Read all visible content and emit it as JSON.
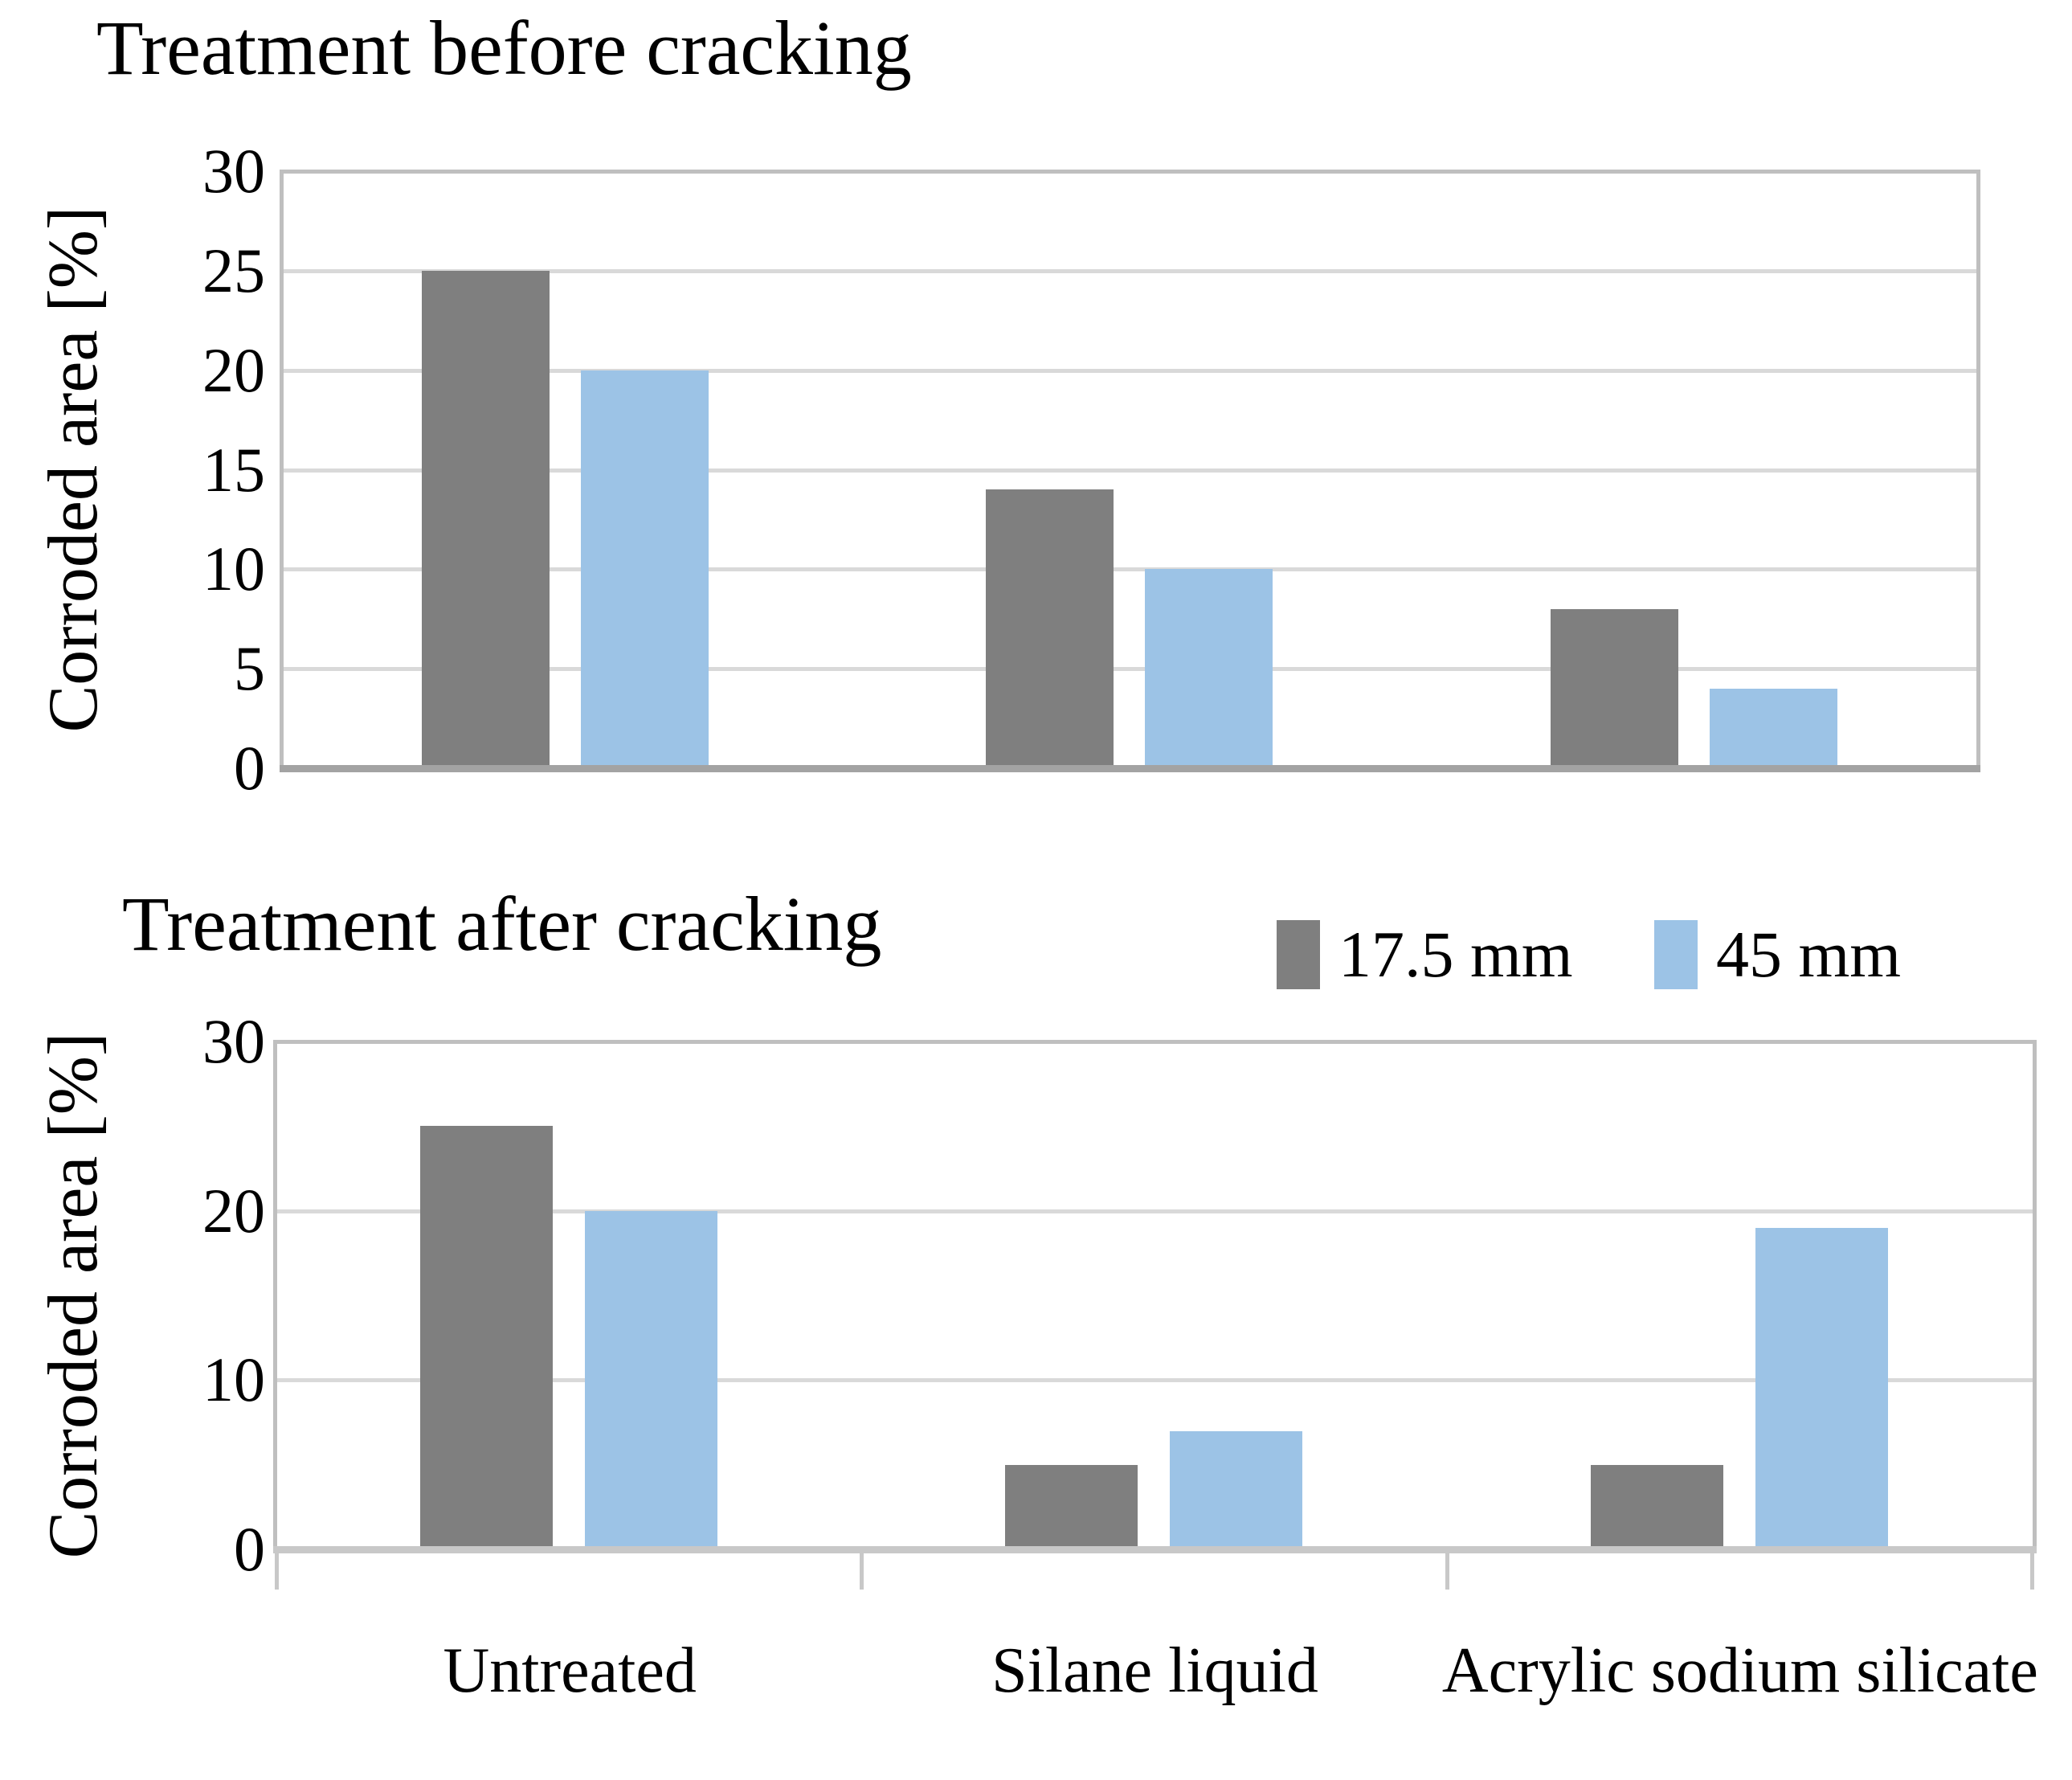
{
  "colors": {
    "background": "#FFFFFF",
    "text": "#000000",
    "bar_gray": "#7F7F7F",
    "bar_blue": "#9CC3E6",
    "gridline": "#D9D9D9",
    "plot_border": "#BFBFBF",
    "axis_top_chart": "#A3A3A3",
    "axis_bottom_chart": "#C8C8C8"
  },
  "legend": {
    "items": [
      {
        "label": "17.5 mm",
        "color": "#7F7F7F",
        "marker": "gray-rect-swatch"
      },
      {
        "label": "45 mm",
        "color": "#9CC3E6",
        "marker": "blue-rect-swatch"
      }
    ],
    "position": "right-of-second-title"
  },
  "chart_data": [
    {
      "type": "bar",
      "title": "Treatment before cracking",
      "xlabel": "",
      "ylabel": "Corroded area [%]",
      "categories": [
        "Untreated",
        "Silane liquid",
        "Acrylic sodium silicate"
      ],
      "category_labels_shown": false,
      "series": [
        {
          "name": "17.5 mm",
          "color": "#7F7F7F",
          "values": [
            25,
            14,
            8
          ]
        },
        {
          "name": "45 mm",
          "color": "#9CC3E6",
          "values": [
            20,
            10,
            4
          ]
        }
      ],
      "ylim": [
        0,
        30
      ],
      "yticks": [
        0,
        5,
        10,
        15,
        20,
        25,
        30
      ],
      "grid": true,
      "legend_position": "none"
    },
    {
      "type": "bar",
      "title": "Treatment after cracking",
      "xlabel": "",
      "ylabel": "Corroded area [%]",
      "categories": [
        "Untreated",
        "Silane liquid",
        "Acrylic sodium silicate"
      ],
      "category_labels_shown": true,
      "series": [
        {
          "name": "17.5 mm",
          "color": "#7F7F7F",
          "values": [
            25,
            5,
            5
          ]
        },
        {
          "name": "45 mm",
          "color": "#9CC3E6",
          "values": [
            20,
            7,
            19
          ]
        }
      ],
      "ylim": [
        0,
        30
      ],
      "yticks": [
        0,
        10,
        20,
        30
      ],
      "grid": true,
      "legend_position": "shared-top"
    }
  ]
}
